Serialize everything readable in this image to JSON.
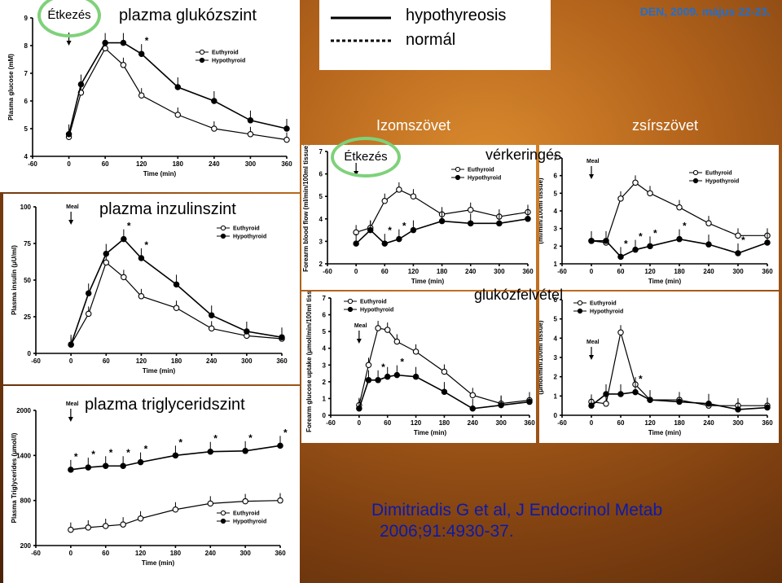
{
  "header": {
    "meal_oval_label": "Étkezés",
    "legend_solid": "hypothyreosis",
    "legend_dotted": "normál",
    "date": "DEN, 2009. május 22-23."
  },
  "section_labels": {
    "muscle": "Izomszövet",
    "fat": "zsírszövet",
    "blood_flow": "vérkeringés",
    "glucose_uptake": "glukózfelvétel",
    "meal_oval_label_2": "Étkezés"
  },
  "citation": {
    "line1": "Dimitriadis G et al, J Endocrinol Metab",
    "line2": "2006;91:4930-37."
  },
  "colors": {
    "hypothyroid": "#000000",
    "euthyroid": "#ffffff",
    "date": "#1e6fd0",
    "citation": "#0b1aa8",
    "oval": "#7fd17a"
  },
  "chart_data": [
    {
      "id": "glucose",
      "type": "line",
      "overlay_title": "plazma glukózszint",
      "ylabel": "Plasma glucose (mM)",
      "xlabel": "Time (min)",
      "xlim": [
        -60,
        360
      ],
      "ylim": [
        4,
        9
      ],
      "x_ticks": [
        -60,
        0,
        60,
        120,
        180,
        240,
        300,
        360
      ],
      "y_ticks": [
        4,
        5,
        6,
        7,
        8,
        9
      ],
      "legend": [
        "Euthyroid",
        "Hypothyroid"
      ],
      "meal_label": "",
      "x": [
        0,
        20,
        60,
        90,
        120,
        180,
        240,
        300,
        360
      ],
      "series": [
        {
          "name": "Euthyroid",
          "values": [
            4.7,
            6.3,
            7.9,
            7.3,
            6.2,
            5.5,
            5.0,
            4.8,
            4.6
          ]
        },
        {
          "name": "Hypothyroid",
          "values": [
            4.8,
            6.6,
            8.1,
            8.1,
            7.7,
            6.5,
            6.0,
            5.3,
            5.0
          ]
        }
      ],
      "stars_x": [
        120
      ]
    },
    {
      "id": "insulin",
      "type": "line",
      "overlay_title": "plazma inzulinszint",
      "ylabel": "Plasma insulin (μU/ml)",
      "xlabel": "Time (min)",
      "xlim": [
        -60,
        360
      ],
      "ylim": [
        0,
        100
      ],
      "x_ticks": [
        -60,
        0,
        60,
        120,
        180,
        240,
        300,
        360
      ],
      "y_ticks": [
        0,
        25,
        50,
        75,
        100
      ],
      "legend": [
        "Euthyroid",
        "Hypothyroid"
      ],
      "meal_label": "Meal",
      "x": [
        0,
        30,
        60,
        90,
        120,
        180,
        240,
        300,
        360
      ],
      "series": [
        {
          "name": "Euthyroid",
          "values": [
            6,
            27,
            62,
            52,
            39,
            31,
            17,
            12,
            10
          ]
        },
        {
          "name": "Hypothyroid",
          "values": [
            6,
            41,
            68,
            78,
            65,
            47,
            26,
            15,
            11
          ]
        }
      ],
      "stars_x": [
        90,
        120
      ]
    },
    {
      "id": "triglyceride",
      "type": "line",
      "overlay_title": "plazma triglyceridszint",
      "ylabel": "Plasma Triglycerides (μmol/l)",
      "xlabel": "Time (min)",
      "xlim": [
        -60,
        360
      ],
      "ylim": [
        200,
        2000
      ],
      "x_ticks": [
        -60,
        0,
        60,
        120,
        180,
        240,
        300,
        360
      ],
      "y_ticks": [
        200,
        800,
        1400,
        2000
      ],
      "legend": [
        "Euthyroid",
        "Hypothyroid"
      ],
      "meal_label": "Meal",
      "x": [
        0,
        30,
        60,
        90,
        120,
        180,
        240,
        300,
        360
      ],
      "series": [
        {
          "name": "Euthyroid",
          "values": [
            410,
            440,
            460,
            480,
            560,
            680,
            760,
            790,
            800
          ]
        },
        {
          "name": "Hypothyroid",
          "values": [
            1210,
            1240,
            1260,
            1260,
            1310,
            1400,
            1450,
            1460,
            1530
          ]
        }
      ],
      "stars_x": [
        0,
        30,
        60,
        90,
        120,
        180,
        240,
        300,
        360
      ]
    },
    {
      "id": "muscle_blood_flow",
      "type": "line",
      "ylabel": "Forearm blood flow (ml/min/100ml tissue)",
      "xlabel": "Time (min)",
      "xlim": [
        -60,
        360
      ],
      "ylim": [
        2,
        7
      ],
      "x_ticks": [
        -60,
        0,
        60,
        120,
        180,
        240,
        300,
        360
      ],
      "y_ticks": [
        2,
        3,
        4,
        5,
        6,
        7
      ],
      "legend": [
        "Euthyroid",
        "Hypothyroid"
      ],
      "meal_label": "",
      "x": [
        0,
        30,
        60,
        90,
        120,
        180,
        240,
        300,
        360
      ],
      "series": [
        {
          "name": "Euthyroid",
          "values": [
            3.4,
            3.6,
            4.8,
            5.3,
            5.0,
            4.2,
            4.4,
            4.1,
            4.3
          ]
        },
        {
          "name": "Hypothyroid",
          "values": [
            2.9,
            3.5,
            2.9,
            3.1,
            3.5,
            3.9,
            3.8,
            3.8,
            4.0
          ]
        }
      ],
      "stars_x": [
        60,
        90
      ]
    },
    {
      "id": "fat_blood_flow",
      "type": "line",
      "ylabel": "(ml/min/100ml tissue)",
      "xlabel": "Time (min)",
      "xlim": [
        -60,
        360
      ],
      "ylim": [
        1,
        7
      ],
      "x_ticks": [
        -60,
        0,
        60,
        120,
        180,
        240,
        300,
        360
      ],
      "y_ticks": [
        1,
        2,
        3,
        4,
        5,
        6,
        7
      ],
      "legend": [
        "Euthyroid",
        "Hypothyroid"
      ],
      "meal_label": "Meal",
      "x": [
        0,
        30,
        60,
        90,
        120,
        180,
        240,
        300,
        360
      ],
      "series": [
        {
          "name": "Euthyroid",
          "values": [
            2.3,
            2.2,
            4.7,
            5.6,
            5.0,
            4.2,
            3.3,
            2.6,
            2.6
          ]
        },
        {
          "name": "Hypothyroid",
          "values": [
            2.3,
            2.3,
            1.4,
            1.8,
            2.0,
            2.4,
            2.1,
            1.6,
            2.2
          ]
        }
      ],
      "stars_x": [
        60,
        90,
        120,
        180,
        300
      ]
    },
    {
      "id": "muscle_glucose_uptake",
      "type": "line",
      "ylabel": "Forearm glucose uptake (μmol/min/100ml tissue)",
      "xlabel": "Time (min)",
      "xlim": [
        -60,
        360
      ],
      "ylim": [
        0,
        7
      ],
      "x_ticks": [
        -60,
        0,
        60,
        120,
        180,
        240,
        300,
        360
      ],
      "y_ticks": [
        0,
        1,
        2,
        3,
        4,
        5,
        6,
        7
      ],
      "legend": [
        "Euthyroid",
        "Hypothyroid"
      ],
      "meal_label": "Meal",
      "x": [
        0,
        20,
        40,
        60,
        80,
        120,
        180,
        240,
        300,
        360
      ],
      "series": [
        {
          "name": "Euthyroid",
          "values": [
            0.6,
            3.0,
            5.2,
            5.1,
            4.4,
            3.8,
            2.6,
            1.2,
            0.7,
            0.9
          ]
        },
        {
          "name": "Hypothyroid",
          "values": [
            0.4,
            2.1,
            2.1,
            2.3,
            2.4,
            2.3,
            1.4,
            0.4,
            0.6,
            0.8
          ]
        }
      ],
      "stars_x": [
        40,
        80
      ]
    },
    {
      "id": "fat_glucose_uptake",
      "type": "line",
      "ylabel": "(μmol/min/100ml tissue)",
      "xlabel": "Time (min)",
      "xlim": [
        -60,
        360
      ],
      "ylim": [
        0,
        6
      ],
      "x_ticks": [
        -60,
        0,
        60,
        120,
        180,
        240,
        300,
        360
      ],
      "y_ticks": [
        0,
        1,
        2,
        3,
        4,
        5,
        6
      ],
      "legend": [
        "Euthyroid",
        "Hypothyroid"
      ],
      "meal_label": "Meal",
      "x": [
        0,
        30,
        60,
        90,
        120,
        180,
        240,
        300,
        360
      ],
      "series": [
        {
          "name": "Euthyroid",
          "values": [
            0.7,
            0.6,
            4.3,
            1.6,
            0.8,
            0.8,
            0.5,
            0.5,
            0.5
          ]
        },
        {
          "name": "Hypothyroid",
          "values": [
            0.5,
            1.1,
            1.1,
            1.2,
            0.8,
            0.7,
            0.6,
            0.3,
            0.4
          ]
        }
      ],
      "stars_x": [
        90
      ]
    }
  ]
}
